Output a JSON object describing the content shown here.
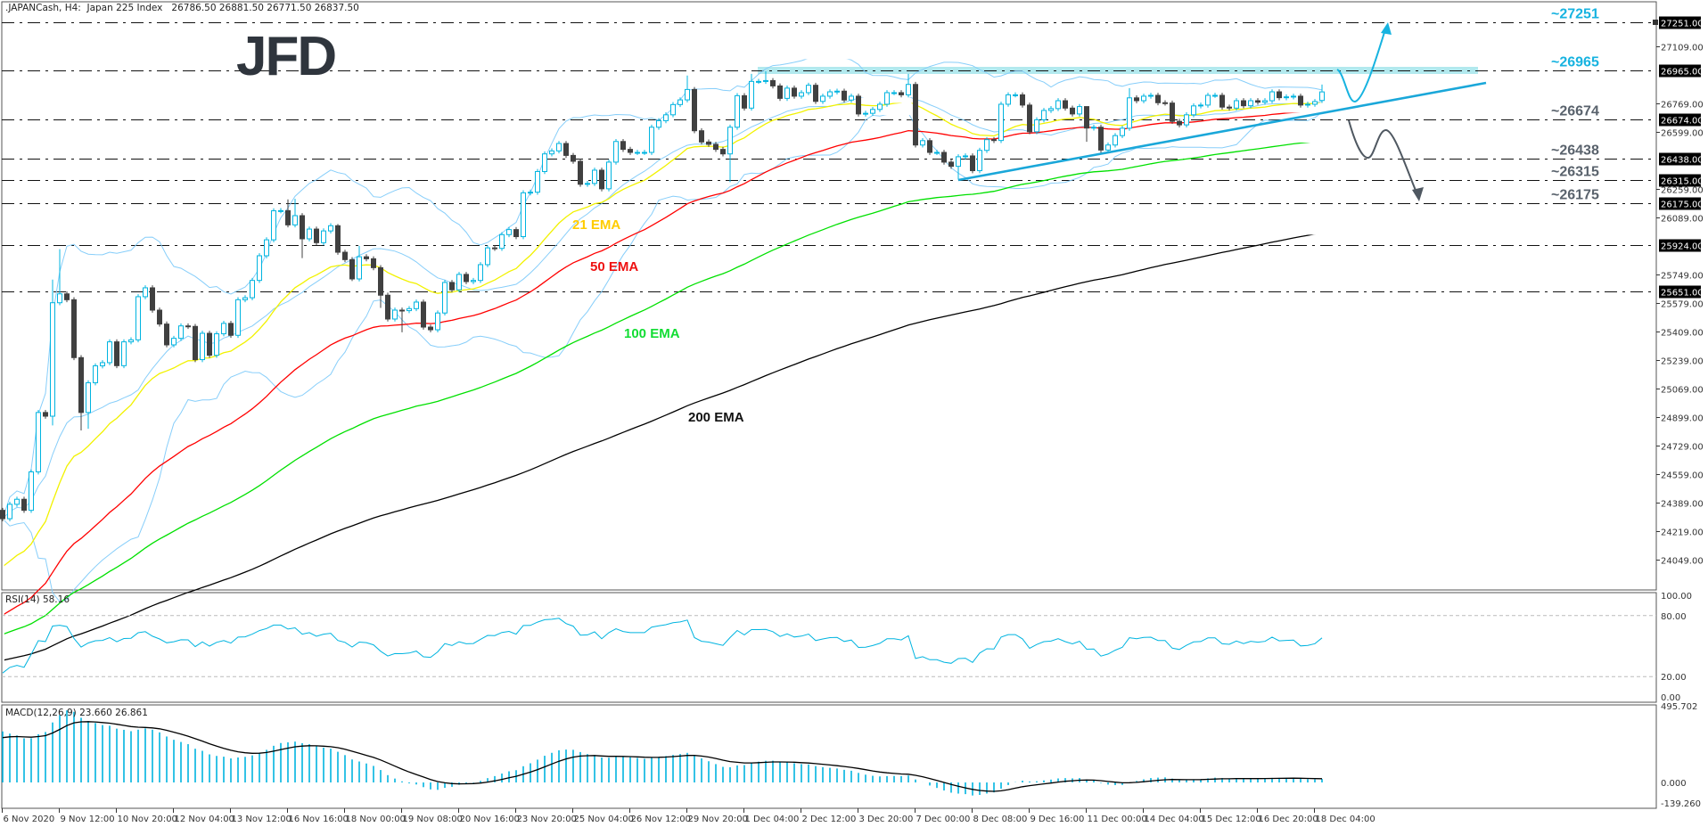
{
  "header": {
    "title": ".JAPANCash, H4:  Japan 225 Index",
    "ohlc": "26786.50 26881.50 26771.50 26837.50"
  },
  "logo": "JFD",
  "price_axis": [
    "27109.00",
    "26769.00",
    "26599.00",
    "26259.00",
    "26089.00",
    "25749.00",
    "25579.00",
    "25409.00",
    "25239.00",
    "25069.00",
    "24899.00",
    "24729.00",
    "24559.00",
    "24389.00",
    "24219.00",
    "24049.00"
  ],
  "levels": [
    {
      "value": 27251,
      "label": "~27251",
      "box": "27251.00",
      "color": "#17b3e0"
    },
    {
      "value": 26965,
      "label": "~26965",
      "box": "26965.00",
      "color": "#17b3e0"
    },
    {
      "value": 26674,
      "label": "~26674",
      "box": "26674.00",
      "color": "#59626c"
    },
    {
      "value": 26438,
      "label": "~26438",
      "box": "26438.00",
      "color": "#59626c"
    },
    {
      "value": 26315,
      "label": "~26315",
      "box": "26315.00",
      "color": "#59626c"
    },
    {
      "value": 26175,
      "label": "~26175",
      "box": "26175.00",
      "color": "#59626c"
    },
    {
      "value": 25924,
      "label": "",
      "box": "25924.00",
      "color": "#59626c"
    },
    {
      "value": 25651,
      "label": "",
      "box": "25651.00",
      "color": "#59626c"
    }
  ],
  "ema_labels": [
    {
      "text": "21 EMA",
      "color": "#ffcc00"
    },
    {
      "text": "50 EMA",
      "color": "#ee1111"
    },
    {
      "text": "100 EMA",
      "color": "#11dd33"
    },
    {
      "text": "200 EMA",
      "color": "#111111"
    }
  ],
  "rsi": {
    "label": "RSI(14) 58.16",
    "axis": [
      "100.00",
      "80.00",
      "20.00",
      "0.00"
    ]
  },
  "macd": {
    "label": "MACD(12,26,9) 23.660 26.861",
    "axis": [
      "495.702",
      "0.000",
      "-139.260"
    ]
  },
  "time_axis": [
    "6 Nov 2020",
    "9 Nov 12:00",
    "10 Nov 20:00",
    "12 Nov 04:00",
    "13 Nov 12:00",
    "16 Nov 16:00",
    "18 Nov 00:00",
    "19 Nov 08:00",
    "20 Nov 16:00",
    "23 Nov 20:00",
    "25 Nov 04:00",
    "26 Nov 12:00",
    "29 Nov 20:00",
    "1 Dec 04:00",
    "2 Dec 12:00",
    "3 Dec 20:00",
    "7 Dec 00:00",
    "8 Dec 08:00",
    "9 Dec 16:00",
    "11 Dec 00:00",
    "14 Dec 04:00",
    "15 Dec 12:00",
    "16 Dec 20:00",
    "18 Dec 04:00"
  ],
  "colors": {
    "up_candle": "#00b4e0",
    "down_candle": "#404040",
    "bollinger": "#87cefa",
    "ema21": "#f2f200",
    "ema50": "#ff0000",
    "ema100": "#00e000",
    "ema200": "#000000",
    "trendline": "#1aa7d9",
    "resistance_zone": "#b2e9ee",
    "rsi": "#00b4e0",
    "macd_hist": "#00b4e0",
    "macd_signal": "#000000"
  },
  "chart_data": {
    "type": "candlestick",
    "timeframe": "H4",
    "first_open": 24344,
    "closes": [
      24294,
      24380,
      24410,
      24344,
      24573,
      24927,
      24905,
      25581,
      25634,
      25599,
      25254,
      24927,
      25104,
      25205,
      25224,
      25348,
      25206,
      25348,
      25360,
      25617,
      25670,
      25537,
      25454,
      25330,
      25369,
      25443,
      25440,
      25242,
      25399,
      25268,
      25396,
      25458,
      25387,
      25599,
      25611,
      25714,
      25861,
      25956,
      26129,
      26130,
      26045,
      26100,
      25962,
      26020,
      25939,
      26009,
      26040,
      25882,
      25838,
      25723,
      25855,
      25843,
      25790,
      25626,
      25484,
      25537,
      25534,
      25546,
      25585,
      25436,
      25420,
      25520,
      25702,
      25658,
      25750,
      25707,
      25714,
      25808,
      25908,
      25905,
      25987,
      26017,
      25975,
      26236,
      26240,
      26363,
      26468,
      26486,
      26530,
      26459,
      26424,
      26287,
      26292,
      26371,
      26260,
      26419,
      26542,
      26495,
      26477,
      26477,
      26477,
      26627,
      26666,
      26701,
      26762,
      26790,
      26852,
      26606,
      26539,
      26525,
      26495,
      26468,
      26627,
      26815,
      26741,
      26900,
      26900,
      26905,
      26873,
      26799,
      26860,
      26812,
      26833,
      26877,
      26781,
      26812,
      26838,
      26842,
      26789,
      26812,
      26706,
      26710,
      26733,
      26764,
      26833,
      26833,
      26820,
      26882,
      26521,
      26547,
      26477,
      26477,
      26419,
      26394,
      26451,
      26456,
      26368,
      26489,
      26553,
      26548,
      26764,
      26820,
      26820,
      26759,
      26600,
      26671,
      26727,
      26738,
      26785,
      26741,
      26706,
      26750,
      26622,
      26627,
      26491,
      26521,
      26577,
      26621,
      26802,
      26785,
      26812,
      26817,
      26773,
      26771,
      26662,
      26641,
      26701,
      26754,
      26759,
      26817,
      26817,
      26747,
      26741,
      26785,
      26755,
      26785,
      26776,
      26785,
      26838,
      26803,
      26808,
      26812,
      26759,
      26764,
      26780,
      26837.5
    ],
    "wick_extremes": {
      "7": {
        "high": 25719,
        "low": 24850
      },
      "8": {
        "high": 25900
      },
      "11": {
        "low": 24820
      },
      "12": {
        "low": 24830
      },
      "40": {
        "high": 26197
      },
      "41": {
        "high": 26200
      },
      "42": {
        "low": 25847
      },
      "47": {
        "high": 26050
      },
      "49": {
        "low": 25710
      },
      "50": {
        "high": 25920
      },
      "53": {
        "low": 25550
      },
      "56": {
        "low": 25405
      },
      "96": {
        "high": 26935
      },
      "102": {
        "low": 26300
      },
      "105": {
        "high": 26945
      },
      "107": {
        "high": 26960
      },
      "127": {
        "high": 26945
      },
      "134": {
        "low": 26315
      },
      "152": {
        "high": 26720,
        "low": 26540
      },
      "154": {
        "low": 26470
      },
      "158": {
        "high": 26860
      },
      "185": {
        "high": 26881.5,
        "low": 26771.5
      }
    },
    "ema": [
      {
        "period": 21,
        "start": 24008
      },
      {
        "period": 50,
        "start": 23720
      },
      {
        "period": 100,
        "start": 23605
      },
      {
        "period": 200,
        "start": 23450
      }
    ],
    "bollinger": {
      "period": 20,
      "deviations": 2
    },
    "price_range": [
      23874,
      27385
    ],
    "rsi": {
      "period": 14,
      "range": [
        0,
        100
      ],
      "levels": [
        80,
        20
      ]
    },
    "macd": {
      "fast": 12,
      "slow": 26,
      "signal": 9,
      "fast_start": 24250,
      "slow_start": 23920,
      "signal_start": 280,
      "range": [
        -139.26,
        495.702
      ]
    }
  }
}
